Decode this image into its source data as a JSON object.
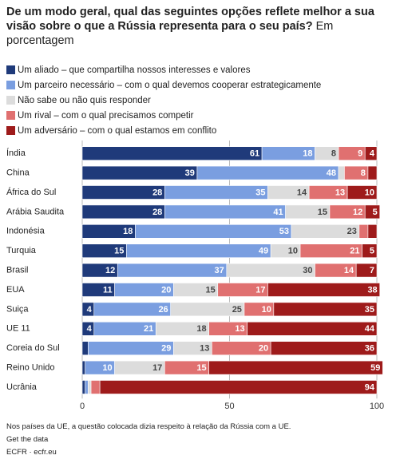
{
  "chart_data": {
    "type": "stacked_bar_horizontal",
    "title": "De um modo geral, qual das seguintes opções reflete melhor a sua visão sobre o que a Rússia representa para o seu país?",
    "subtitle": "Em porcentagem",
    "categories": [
      "Índia",
      "China",
      "África do Sul",
      "Arábia Saudita",
      "Indonésia",
      "Turquia",
      "Brasil",
      "EUA",
      "Suiça",
      "UE 11",
      "Coreia do Sul",
      "Reino Unido",
      "Ucrânia"
    ],
    "series": [
      {
        "name": "Um aliado – que compartilha nossos interesses e valores",
        "color": "#1f3a7a",
        "values": [
          61,
          39,
          28,
          28,
          18,
          15,
          12,
          11,
          4,
          4,
          2,
          1,
          1
        ]
      },
      {
        "name": "Um parceiro necessário – com o qual devemos cooperar estrategicamente",
        "color": "#7a9ee0",
        "values": [
          18,
          48,
          35,
          41,
          53,
          49,
          37,
          20,
          26,
          21,
          29,
          10,
          1
        ]
      },
      {
        "name": "Não sabe ou não quis responder",
        "color": "#dcdcdc",
        "values": [
          8,
          2,
          14,
          15,
          23,
          10,
          30,
          15,
          25,
          18,
          13,
          17,
          1
        ]
      },
      {
        "name": "Um rival – com o qual precisamos competir",
        "color": "#e07070",
        "values": [
          9,
          8,
          13,
          12,
          3,
          21,
          14,
          17,
          10,
          13,
          20,
          15,
          3
        ]
      },
      {
        "name": "Um adversário – com o qual estamos em conflito",
        "color": "#9e1b1b",
        "values": [
          4,
          3,
          10,
          5,
          3,
          5,
          7,
          38,
          35,
          44,
          36,
          59,
          94
        ]
      }
    ],
    "xlim": [
      0,
      100
    ],
    "xticks": [
      0,
      50,
      100
    ],
    "grid": true,
    "notes": [
      "Nos países da UE, a questão colocada dizia respeito à relação da Rússia com a UE.",
      "Get the data",
      "ECFR · ecfr.eu"
    ]
  }
}
